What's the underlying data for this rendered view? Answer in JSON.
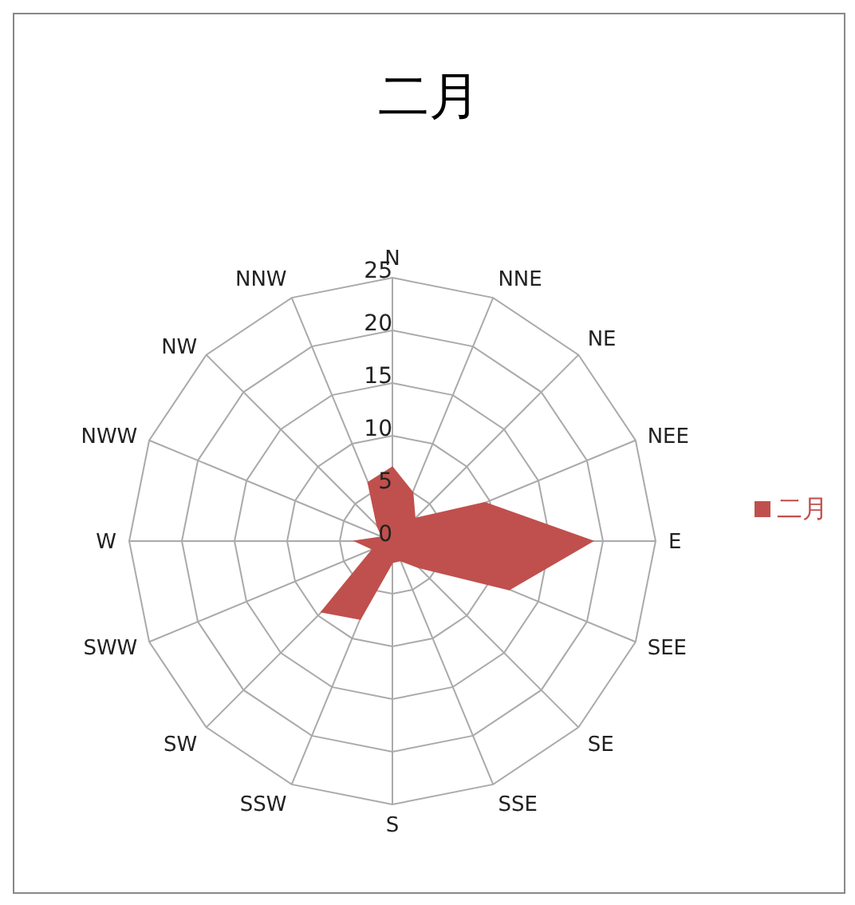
{
  "chart_data": {
    "type": "radar",
    "title": "二月",
    "categories": [
      "N",
      "NNE",
      "NE",
      "NEE",
      "E",
      "SEE",
      "SE",
      "SSE",
      "S",
      "SSW",
      "SW",
      "SWW",
      "W",
      "NWW",
      "NW",
      "NNW"
    ],
    "series": [
      {
        "name": "二月",
        "color": "#c0504d",
        "values": [
          7,
          5,
          3,
          9.5,
          19,
          12,
          3.5,
          2,
          2,
          8,
          9.5,
          2,
          3.5,
          1,
          2,
          6
        ]
      }
    ],
    "ylim": [
      0,
      25
    ],
    "yticks": [
      0,
      5,
      10,
      15,
      20,
      25
    ],
    "grid": true,
    "legend": "right"
  }
}
